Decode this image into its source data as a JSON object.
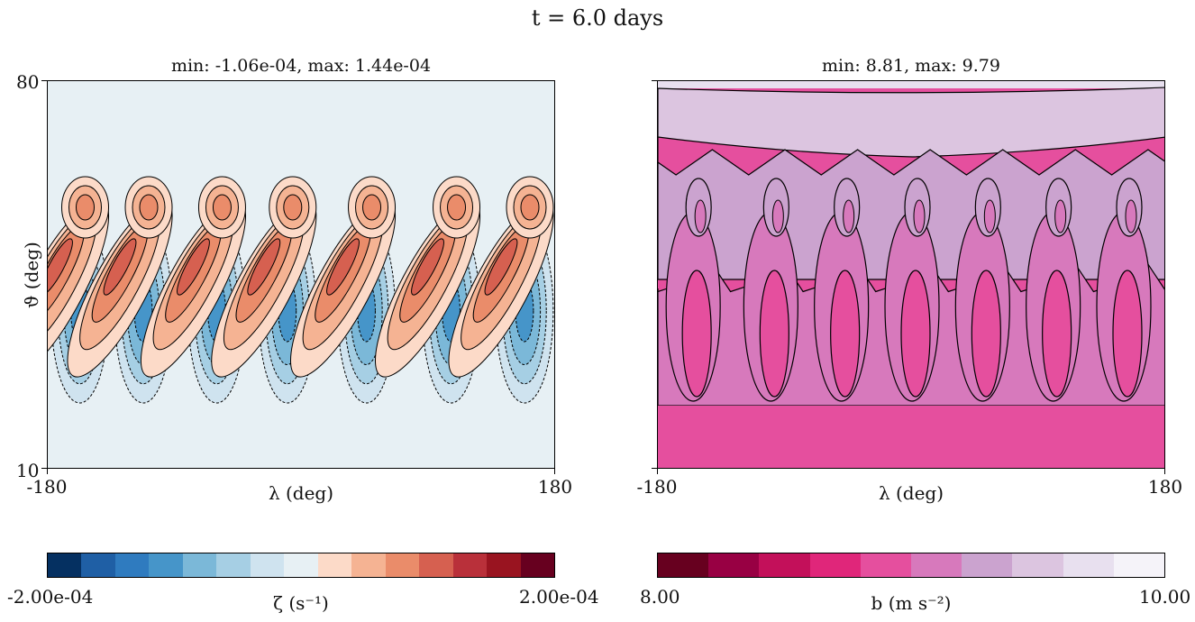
{
  "suptitle": "t = 6.0 days",
  "chart_data": [
    {
      "type": "heatmap",
      "title": "min: -1.06e-04, max: 1.44e-04",
      "xlabel": "λ (deg)",
      "ylabel": "ϑ (deg)",
      "xlim": [
        -180,
        180
      ],
      "ylim": [
        10,
        80
      ],
      "x_tick_labels": [
        "-180",
        "180"
      ],
      "y_tick_labels": [
        "10",
        "80"
      ],
      "colorbar": {
        "label": "ζ (s⁻¹)",
        "min_label": "-2.00e-04",
        "max_label": "2.00e-04",
        "range": [
          -0.0002,
          0.0002
        ],
        "colors": [
          "#053061",
          "#1f5fa5",
          "#2f7bbf",
          "#4695c9",
          "#7bb8d8",
          "#a6cfe4",
          "#cfe3ef",
          "#e7f0f4",
          "#fcdac8",
          "#f5b393",
          "#ea8c6a",
          "#d66050",
          "#b9303a",
          "#991420",
          "#67001f"
        ]
      },
      "vortex_centers_lon": [
        -165,
        -120,
        -68,
        -18,
        38,
        98,
        150
      ],
      "field_min": -0.000106,
      "field_max": 0.000144
    },
    {
      "type": "heatmap",
      "title": "min: 8.81, max: 9.79",
      "xlabel": "λ (deg)",
      "xlim": [
        -180,
        180
      ],
      "x_tick_labels": [
        "-180",
        "180"
      ],
      "colorbar": {
        "label": "b (m s⁻²)",
        "min_label": "8.00",
        "max_label": "10.00",
        "range": [
          8.0,
          10.0
        ],
        "colors": [
          "#67001f",
          "#980043",
          "#c3105a",
          "#e0267a",
          "#e54f9e",
          "#d779bc",
          "#cba3cf",
          "#dcc5e0",
          "#e8e0ef",
          "#f5f3f9"
        ]
      },
      "roll_centers_lon": [
        -155,
        -100,
        -50,
        0,
        50,
        100,
        150
      ],
      "field_min": 8.81,
      "field_max": 9.79
    }
  ]
}
